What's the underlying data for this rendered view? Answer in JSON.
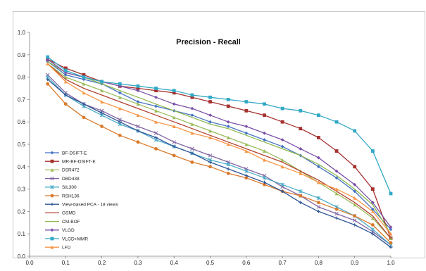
{
  "chart_data": {
    "type": "line",
    "title": "Precision - Recall",
    "xlabel": "",
    "ylabel": "",
    "xlim": [
      0.0,
      1.0
    ],
    "ylim": [
      0.0,
      1.0
    ],
    "x_ticks": [
      "0.0",
      "0.1",
      "0.2",
      "0.3",
      "0.4",
      "0.5",
      "0.6",
      "0.7",
      "0.8",
      "0.9",
      "1.0"
    ],
    "y_ticks": [
      "0.0",
      "0.1",
      "0.2",
      "0.3",
      "0.4",
      "0.5",
      "0.6",
      "0.7",
      "0.8",
      "0.9",
      "1.0"
    ],
    "grid": false,
    "legend_position": "left-bottom",
    "x": [
      0.05,
      0.1,
      0.15,
      0.2,
      0.25,
      0.3,
      0.35,
      0.4,
      0.45,
      0.5,
      0.55,
      0.6,
      0.65,
      0.7,
      0.75,
      0.8,
      0.85,
      0.9,
      0.95,
      1.0
    ],
    "series": [
      {
        "name": "BF-DSIFT-E",
        "color": "#4472C4",
        "marker": "diamond",
        "values": [
          0.87,
          0.81,
          0.79,
          0.77,
          0.73,
          0.69,
          0.67,
          0.65,
          0.63,
          0.6,
          0.58,
          0.55,
          0.52,
          0.49,
          0.45,
          0.4,
          0.35,
          0.29,
          0.21,
          0.12
        ]
      },
      {
        "name": "MR-BF-DSIFT-E",
        "color": "#A5312F",
        "marker": "square",
        "values": [
          0.88,
          0.84,
          0.81,
          0.78,
          0.76,
          0.75,
          0.74,
          0.73,
          0.71,
          0.69,
          0.67,
          0.65,
          0.63,
          0.6,
          0.57,
          0.53,
          0.47,
          0.4,
          0.3,
          0.08
        ]
      },
      {
        "name": "DSR472",
        "color": "#9BBB59",
        "marker": "triangle",
        "values": [
          0.86,
          0.8,
          0.77,
          0.74,
          0.71,
          0.68,
          0.65,
          0.62,
          0.59,
          0.56,
          0.53,
          0.5,
          0.47,
          0.43,
          0.38,
          0.33,
          0.28,
          0.23,
          0.17,
          0.08
        ]
      },
      {
        "name": "DBD438",
        "color": "#8064A2",
        "marker": "x",
        "values": [
          0.81,
          0.73,
          0.68,
          0.65,
          0.61,
          0.58,
          0.55,
          0.51,
          0.48,
          0.45,
          0.42,
          0.39,
          0.36,
          0.31,
          0.27,
          0.22,
          0.19,
          0.16,
          0.11,
          0.05
        ]
      },
      {
        "name": "SIL300",
        "color": "#4BACC6",
        "marker": "star",
        "values": [
          0.8,
          0.72,
          0.67,
          0.63,
          0.59,
          0.56,
          0.52,
          0.49,
          0.46,
          0.43,
          0.41,
          0.38,
          0.35,
          0.32,
          0.29,
          0.26,
          0.22,
          0.18,
          0.12,
          0.05
        ]
      },
      {
        "name": "RSH136",
        "color": "#D9792B",
        "marker": "circle",
        "values": [
          0.77,
          0.68,
          0.62,
          0.58,
          0.54,
          0.51,
          0.48,
          0.45,
          0.42,
          0.4,
          0.37,
          0.35,
          0.32,
          0.29,
          0.27,
          0.24,
          0.21,
          0.18,
          0.14,
          0.06
        ]
      },
      {
        "name": "View-based PCA - 18 views",
        "color": "#2E5597",
        "marker": "plus",
        "values": [
          0.79,
          0.72,
          0.68,
          0.64,
          0.6,
          0.56,
          0.53,
          0.49,
          0.46,
          0.42,
          0.39,
          0.36,
          0.33,
          0.29,
          0.24,
          0.2,
          0.17,
          0.14,
          0.1,
          0.04
        ]
      },
      {
        "name": "GSMD",
        "color": "#B04030",
        "marker": "none",
        "values": [
          0.86,
          0.79,
          0.75,
          0.72,
          0.69,
          0.66,
          0.63,
          0.6,
          0.57,
          0.54,
          0.51,
          0.48,
          0.45,
          0.42,
          0.38,
          0.34,
          0.29,
          0.24,
          0.18,
          0.08
        ]
      },
      {
        "name": "CM-BOF",
        "color": "#8EB84B",
        "marker": "none",
        "values": [
          0.87,
          0.82,
          0.8,
          0.77,
          0.74,
          0.71,
          0.68,
          0.65,
          0.62,
          0.59,
          0.57,
          0.54,
          0.51,
          0.48,
          0.45,
          0.41,
          0.36,
          0.3,
          0.23,
          0.1
        ]
      },
      {
        "name": "VLGD",
        "color": "#7A4FA8",
        "marker": "diamond",
        "values": [
          0.88,
          0.82,
          0.8,
          0.78,
          0.76,
          0.74,
          0.71,
          0.68,
          0.66,
          0.63,
          0.6,
          0.58,
          0.55,
          0.52,
          0.48,
          0.44,
          0.38,
          0.32,
          0.24,
          0.13
        ]
      },
      {
        "name": "VLGD+MMR",
        "color": "#31A8C6",
        "marker": "square",
        "values": [
          0.89,
          0.83,
          0.8,
          0.78,
          0.77,
          0.76,
          0.75,
          0.74,
          0.72,
          0.71,
          0.7,
          0.69,
          0.68,
          0.66,
          0.65,
          0.63,
          0.6,
          0.56,
          0.47,
          0.28
        ]
      },
      {
        "name": "LFD",
        "color": "#F79646",
        "marker": "triangle",
        "values": [
          0.86,
          0.78,
          0.73,
          0.69,
          0.66,
          0.63,
          0.6,
          0.58,
          0.55,
          0.53,
          0.5,
          0.47,
          0.43,
          0.4,
          0.37,
          0.33,
          0.3,
          0.26,
          0.2,
          0.1
        ]
      }
    ]
  }
}
